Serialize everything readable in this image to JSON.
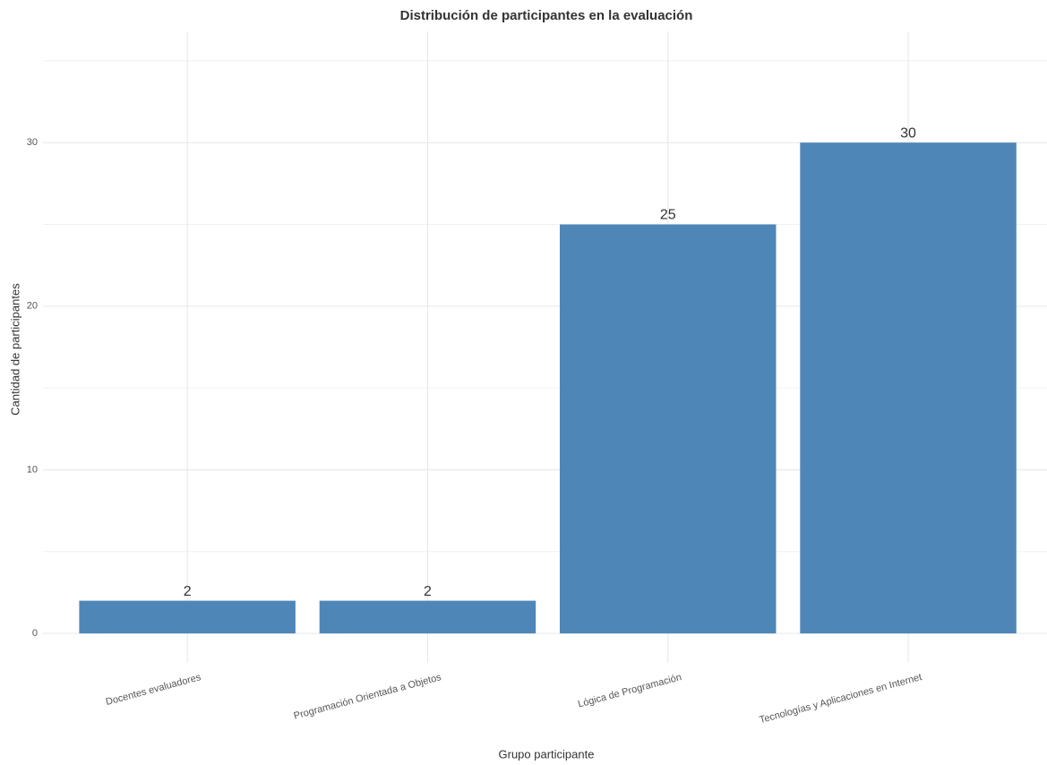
{
  "chart_data": {
    "type": "bar",
    "title": "Distribución de participantes en la evaluación",
    "x_label": "Grupo participante",
    "y_label": "Cantidad de participantes",
    "categories": [
      "Docentes evaluadores",
      "Programación Orientada a Objetos",
      "Lógica de Programación",
      "Tecnologías y Aplicaciones en Internet"
    ],
    "values": [
      2,
      2,
      25,
      30
    ],
    "color": "#4f86b8",
    "ylim": [
      -1.8,
      36.8
    ],
    "yticks": [
      0,
      10,
      20,
      30
    ],
    "minor_yticks": [
      5,
      15,
      25,
      35
    ],
    "grid": true
  }
}
